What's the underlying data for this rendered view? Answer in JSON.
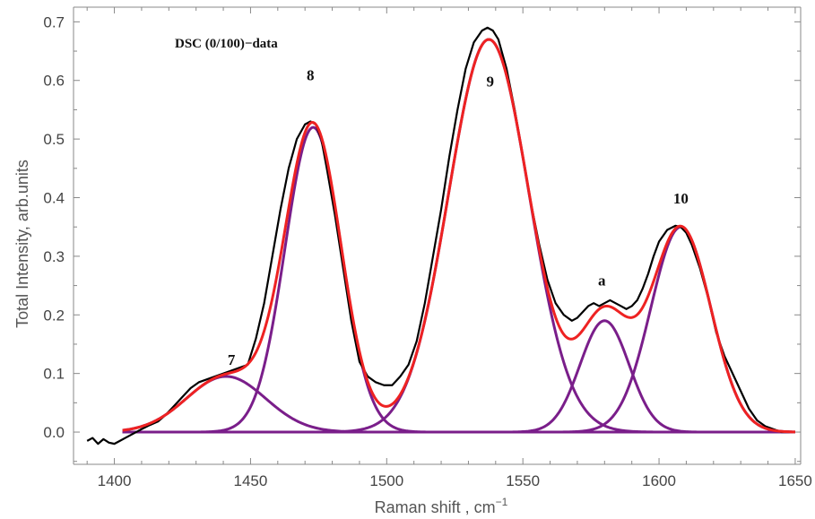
{
  "chart_data": {
    "type": "line",
    "title": "DSC (0/100)−data",
    "xlabel": "Raman shift , cm",
    "xlabel_superscript": "−1",
    "ylabel": "Total Intensity, arb.units",
    "xlim": [
      1385,
      1652
    ],
    "ylim": [
      -0.055,
      0.725
    ],
    "xticks": [
      1400,
      1450,
      1500,
      1550,
      1600,
      1650
    ],
    "xtick_labels": [
      "1400",
      "1450",
      "1500",
      "1550",
      "1600",
      "1650"
    ],
    "yticks": [
      0.0,
      0.1,
      0.2,
      0.3,
      0.4,
      0.5,
      0.6,
      0.7
    ],
    "ytick_labels": [
      "0.0",
      "0.1",
      "0.2",
      "0.3",
      "0.4",
      "0.5",
      "0.6",
      "0.7"
    ],
    "grid": false,
    "colors": {
      "data": "#000000",
      "fit": "#ee2222",
      "component": "#7a1e8a",
      "axis": "#888888"
    },
    "components": [
      {
        "label": "7",
        "center": 1441,
        "amplitude": 0.095,
        "sigma": 14.5
      },
      {
        "label": "8",
        "center": 1473,
        "amplitude": 0.52,
        "sigma": 10.3
      },
      {
        "label": "9",
        "center": 1537.5,
        "amplitude": 0.67,
        "sigma": 14.8
      },
      {
        "label": "a",
        "center": 1580,
        "amplitude": 0.19,
        "sigma": 9.0
      },
      {
        "label": "10",
        "center": 1608,
        "amplitude": 0.35,
        "sigma": 11.0
      }
    ],
    "component_range": [
      1403,
      1650
    ],
    "data_series": {
      "x": [
        1390,
        1392,
        1394,
        1396,
        1398,
        1400,
        1402,
        1404,
        1406,
        1408,
        1410,
        1413,
        1416,
        1419,
        1422,
        1425,
        1428,
        1431,
        1434,
        1437,
        1440,
        1443,
        1446,
        1449,
        1452,
        1455,
        1458,
        1461,
        1464,
        1467,
        1470,
        1472,
        1474,
        1476,
        1478,
        1481,
        1484,
        1487,
        1490,
        1493,
        1496,
        1499,
        1502,
        1505,
        1508,
        1511,
        1514,
        1517,
        1520,
        1523,
        1526,
        1529,
        1532,
        1535,
        1537,
        1539,
        1541,
        1544,
        1547,
        1550,
        1553,
        1556,
        1559,
        1562,
        1565,
        1568,
        1570,
        1572,
        1574,
        1576,
        1578,
        1580,
        1582,
        1584,
        1586,
        1588,
        1590,
        1592,
        1594,
        1596,
        1598,
        1600,
        1603,
        1606,
        1608,
        1610,
        1612,
        1615,
        1618,
        1621,
        1624,
        1627,
        1630,
        1633,
        1636,
        1639,
        1642,
        1645,
        1648
      ],
      "y": [
        -0.015,
        -0.01,
        -0.02,
        -0.012,
        -0.018,
        -0.02,
        -0.015,
        -0.01,
        -0.005,
        0.0,
        0.005,
        0.012,
        0.018,
        0.03,
        0.045,
        0.06,
        0.075,
        0.085,
        0.09,
        0.095,
        0.1,
        0.105,
        0.11,
        0.115,
        0.16,
        0.22,
        0.3,
        0.38,
        0.45,
        0.5,
        0.525,
        0.53,
        0.525,
        0.5,
        0.45,
        0.37,
        0.28,
        0.19,
        0.12,
        0.095,
        0.085,
        0.08,
        0.08,
        0.095,
        0.115,
        0.155,
        0.22,
        0.3,
        0.38,
        0.47,
        0.55,
        0.62,
        0.665,
        0.685,
        0.69,
        0.685,
        0.67,
        0.62,
        0.55,
        0.47,
        0.39,
        0.32,
        0.26,
        0.22,
        0.2,
        0.19,
        0.195,
        0.205,
        0.215,
        0.22,
        0.215,
        0.22,
        0.225,
        0.22,
        0.215,
        0.21,
        0.215,
        0.225,
        0.245,
        0.27,
        0.3,
        0.325,
        0.345,
        0.352,
        0.35,
        0.34,
        0.32,
        0.28,
        0.23,
        0.17,
        0.13,
        0.1,
        0.07,
        0.04,
        0.02,
        0.01,
        0.005,
        0.0,
        0.0
      ]
    },
    "annotations": [
      {
        "text": "7",
        "x": 1443,
        "y": 0.115
      },
      {
        "text": "8",
        "x": 1472,
        "y": 0.6
      },
      {
        "text": "9",
        "x": 1538,
        "y": 0.59
      },
      {
        "text": "a",
        "x": 1579,
        "y": 0.25
      },
      {
        "text": "10",
        "x": 1608,
        "y": 0.39
      }
    ]
  }
}
